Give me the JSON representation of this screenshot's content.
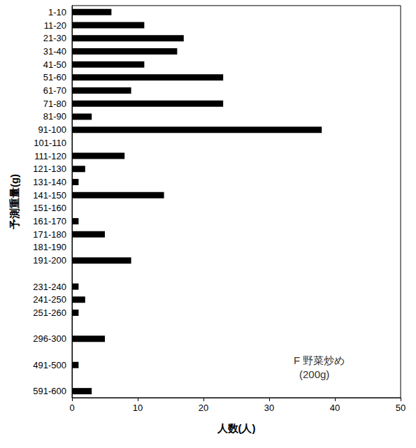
{
  "chart_data": {
    "type": "bar",
    "orientation": "horizontal",
    "categories": [
      "1-10",
      "11-20",
      "21-30",
      "31-40",
      "41-50",
      "51-60",
      "61-70",
      "71-80",
      "81-90",
      "91-100",
      "101-110",
      "111-120",
      "121-130",
      "131-140",
      "141-150",
      "151-160",
      "161-170",
      "171-180",
      "181-190",
      "191-200",
      null,
      "231-240",
      "241-250",
      "251-260",
      null,
      "296-300",
      null,
      "491-500",
      null,
      "591-600"
    ],
    "values": [
      6,
      11,
      17,
      16,
      11,
      23,
      9,
      23,
      3,
      38,
      0,
      8,
      2,
      1,
      14,
      0,
      1,
      5,
      0,
      9,
      null,
      1,
      2,
      1,
      null,
      5,
      null,
      1,
      null,
      3
    ],
    "color": "#000000",
    "x_label": "人数(人)",
    "y_label": "予測重量(g)",
    "xlim": [
      0,
      50
    ],
    "xticks": [
      0,
      10,
      20,
      30,
      40,
      50
    ],
    "annotations": [
      "F 野菜炒め",
      "(200g)"
    ],
    "grid": false
  }
}
